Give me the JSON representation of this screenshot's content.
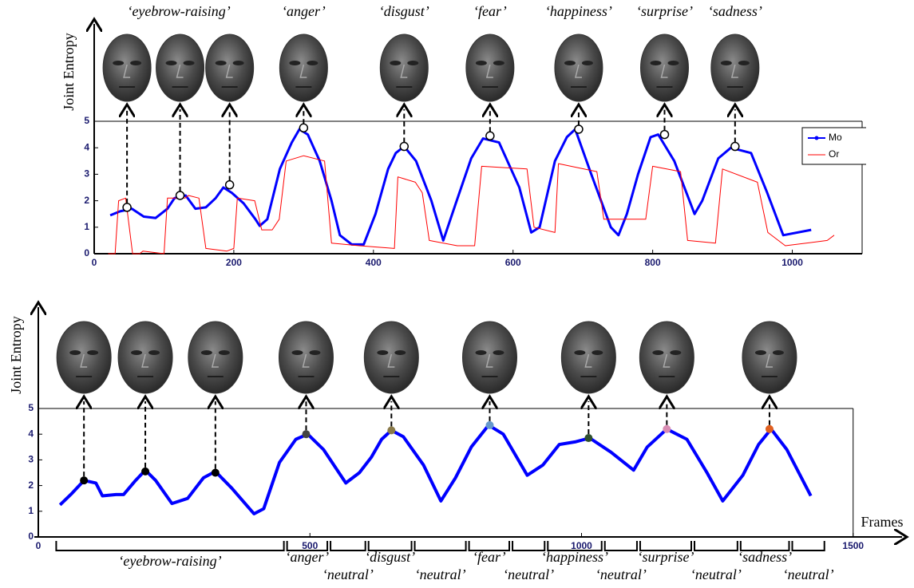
{
  "chart_data": [
    {
      "type": "line",
      "ylabel": "Joint Entropy",
      "xlim": [
        0,
        1100
      ],
      "ylim": [
        0,
        5
      ],
      "xticks": [
        0,
        200,
        400,
        600,
        800,
        1000
      ],
      "yticks": [
        0,
        1,
        2,
        3,
        4,
        5
      ],
      "series": [
        {
          "name": "Mo",
          "color": "#0000ff",
          "x": [
            23,
            37,
            54,
            71,
            88,
            105,
            115,
            131,
            145,
            160,
            174,
            185,
            197,
            214,
            231,
            237,
            248,
            266,
            283,
            294,
            306,
            323,
            340,
            352,
            369,
            386,
            403,
            421,
            432,
            444,
            461,
            483,
            500,
            518,
            540,
            557,
            580,
            609,
            626,
            638,
            660,
            677,
            689,
            712,
            740,
            751,
            763,
            779,
            797,
            808,
            831,
            860,
            871,
            894,
            912,
            941,
            964,
            987,
            1027
          ],
          "values": [
            1.45,
            1.6,
            1.7,
            1.4,
            1.35,
            1.7,
            2.1,
            2.2,
            1.7,
            1.75,
            2.1,
            2.5,
            2.3,
            1.9,
            1.3,
            1.05,
            1.3,
            3.2,
            4.2,
            4.7,
            4.5,
            3.5,
            2.0,
            0.7,
            0.35,
            0.35,
            1.5,
            3.2,
            3.8,
            4.05,
            3.5,
            2.0,
            0.5,
            1.9,
            3.6,
            4.35,
            4.2,
            2.5,
            0.8,
            1.0,
            3.5,
            4.4,
            4.7,
            3.0,
            1.0,
            0.7,
            1.5,
            3.0,
            4.4,
            4.5,
            3.5,
            1.5,
            2.0,
            3.6,
            4.0,
            3.8,
            2.3,
            0.7,
            0.9
          ]
        },
        {
          "name": "Or",
          "color": "#ff0000",
          "x": [
            20,
            30,
            35,
            45,
            55,
            65,
            70,
            100,
            105,
            130,
            135,
            150,
            160,
            190,
            200,
            205,
            230,
            240,
            255,
            265,
            275,
            300,
            330,
            340,
            380,
            430,
            435,
            460,
            470,
            480,
            520,
            545,
            555,
            620,
            630,
            660,
            665,
            720,
            730,
            790,
            800,
            840,
            850,
            890,
            900,
            950,
            965,
            990,
            1050,
            1060
          ],
          "values": [
            0,
            0,
            2,
            2.1,
            0,
            0,
            0.1,
            0,
            2.1,
            2.1,
            2.2,
            2.1,
            0.2,
            0.1,
            0.2,
            2.1,
            2.0,
            0.9,
            0.9,
            1.3,
            3.5,
            3.7,
            3.5,
            0.4,
            0.3,
            0.2,
            2.9,
            2.7,
            2.3,
            0.5,
            0.3,
            0.3,
            3.3,
            3.2,
            1.0,
            0.8,
            3.4,
            3.1,
            1.3,
            1.3,
            3.3,
            3.1,
            0.5,
            0.4,
            3.2,
            2.7,
            0.8,
            0.3,
            0.5,
            0.7
          ]
        }
      ],
      "expressions": [
        {
          "label": "‘eyebrow-raising’",
          "points": [
            {
              "x": 47,
              "y": 1.75
            },
            {
              "x": 123,
              "y": 2.2
            },
            {
              "x": 194,
              "y": 2.6
            }
          ]
        },
        {
          "label": "‘anger’",
          "points": [
            {
              "x": 300,
              "y": 4.75
            }
          ]
        },
        {
          "label": "‘disgust’",
          "points": [
            {
              "x": 444,
              "y": 4.05
            }
          ]
        },
        {
          "label": "‘fear’",
          "points": [
            {
              "x": 567,
              "y": 4.45
            }
          ]
        },
        {
          "label": "‘happiness’",
          "points": [
            {
              "x": 694,
              "y": 4.7
            }
          ]
        },
        {
          "label": "‘surprise’",
          "points": [
            {
              "x": 817,
              "y": 4.5
            }
          ]
        },
        {
          "label": "‘sadness’",
          "points": [
            {
              "x": 918,
              "y": 4.05
            }
          ]
        }
      ]
    },
    {
      "type": "line",
      "ylabel": "Joint Entropy",
      "xlabel": "Frames",
      "xlim": [
        0,
        1590
      ],
      "ylim": [
        0,
        5
      ],
      "xticks": [
        0,
        500,
        1000,
        1500
      ],
      "yticks": [
        0,
        1,
        2,
        3,
        4,
        5
      ],
      "series": [
        {
          "color": "#0000ff",
          "x": [
            40,
            62,
            84,
            106,
            118,
            143,
            157,
            179,
            197,
            216,
            246,
            275,
            304,
            326,
            356,
            397,
            415,
            444,
            474,
            496,
            525,
            566,
            591,
            613,
            632,
            650,
            672,
            709,
            741,
            768,
            797,
            829,
            856,
            900,
            929,
            959,
            988,
            1015,
            1054,
            1096,
            1121,
            1157,
            1194,
            1231,
            1260,
            1297,
            1326,
            1349,
            1378,
            1422
          ],
          "values": [
            1.25,
            1.7,
            2.2,
            2.1,
            1.6,
            1.65,
            1.65,
            2.2,
            2.6,
            2.2,
            1.3,
            1.5,
            2.3,
            2.55,
            1.9,
            0.9,
            1.1,
            2.9,
            3.8,
            4.0,
            3.4,
            2.1,
            2.5,
            3.1,
            3.8,
            4.15,
            3.9,
            2.8,
            1.4,
            2.3,
            3.5,
            4.35,
            4.0,
            2.4,
            2.8,
            3.6,
            3.7,
            3.85,
            3.3,
            2.6,
            3.5,
            4.2,
            3.8,
            2.5,
            1.4,
            2.4,
            3.6,
            4.2,
            3.4,
            1.6
          ]
        }
      ],
      "expressions": [
        {
          "points": [
            {
              "x": 84,
              "y": 2.2,
              "color": "#000000"
            },
            {
              "x": 197,
              "y": 2.55,
              "color": "#000000"
            },
            {
              "x": 326,
              "y": 2.5,
              "color": "#000000"
            }
          ]
        },
        {
          "points": [
            {
              "x": 493,
              "y": 4.0,
              "color": "#444444"
            }
          ]
        },
        {
          "points": [
            {
              "x": 650,
              "y": 4.15,
              "color": "#8a7a4a"
            }
          ]
        },
        {
          "points": [
            {
              "x": 831,
              "y": 4.35,
              "color": "#6699cc"
            }
          ]
        },
        {
          "points": [
            {
              "x": 1013,
              "y": 3.85,
              "color": "#2f4f2f"
            }
          ]
        },
        {
          "points": [
            {
              "x": 1157,
              "y": 4.2,
              "color": "#d98cb3"
            }
          ]
        },
        {
          "points": [
            {
              "x": 1346,
              "y": 4.2,
              "color": "#e06020"
            }
          ]
        }
      ],
      "segments": [
        {
          "label": "‘eyebrow-raising’",
          "start": 30,
          "end": 455
        },
        {
          "label": "‘anger’",
          "start": 455,
          "end": 535
        },
        {
          "label": "‘neutral’",
          "start": 535,
          "end": 605
        },
        {
          "label": "‘disgust’",
          "start": 605,
          "end": 690
        },
        {
          "label": "‘neutral’",
          "start": 690,
          "end": 790
        },
        {
          "label": "‘fear’",
          "start": 790,
          "end": 870
        },
        {
          "label": "‘neutral’",
          "start": 870,
          "end": 935
        },
        {
          "label": "‘happiness’",
          "start": 935,
          "end": 1040
        },
        {
          "label": "‘neutral’",
          "start": 1040,
          "end": 1105
        },
        {
          "label": "‘surprise’",
          "start": 1105,
          "end": 1205
        },
        {
          "label": "‘neutral’",
          "start": 1205,
          "end": 1290
        },
        {
          "label": "‘sadness’",
          "start": 1290,
          "end": 1385
        },
        {
          "label": "‘neutral’",
          "start": 1385,
          "end": 1450
        }
      ]
    }
  ]
}
